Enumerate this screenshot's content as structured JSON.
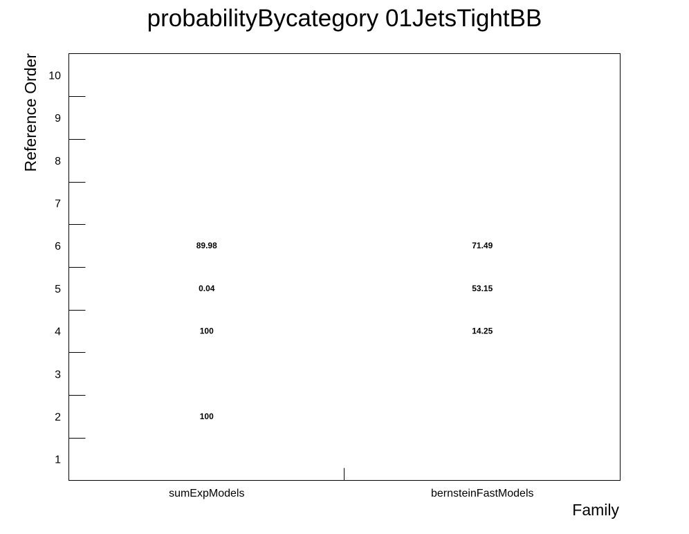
{
  "chart_data": {
    "type": "table",
    "title": "probabilityBycategory 01JetsTightBB",
    "xlabel": "Family",
    "ylabel": "Reference Order",
    "categories": [
      "sumExpModels",
      "bernsteinFastModels"
    ],
    "y_ticks": [
      1,
      2,
      3,
      4,
      5,
      6,
      7,
      8,
      9,
      10
    ],
    "ylim": [
      0.5,
      10.5
    ],
    "grid": false,
    "cells": [
      {
        "x": "sumExpModels",
        "y": 6,
        "label": "89.98"
      },
      {
        "x": "sumExpModels",
        "y": 5,
        "label": "0.04"
      },
      {
        "x": "sumExpModels",
        "y": 4,
        "label": "100"
      },
      {
        "x": "sumExpModels",
        "y": 2,
        "label": "100"
      },
      {
        "x": "bernsteinFastModels",
        "y": 6,
        "label": "71.49"
      },
      {
        "x": "bernsteinFastModels",
        "y": 5,
        "label": "53.15"
      },
      {
        "x": "bernsteinFastModels",
        "y": 4,
        "label": "14.25"
      }
    ]
  }
}
